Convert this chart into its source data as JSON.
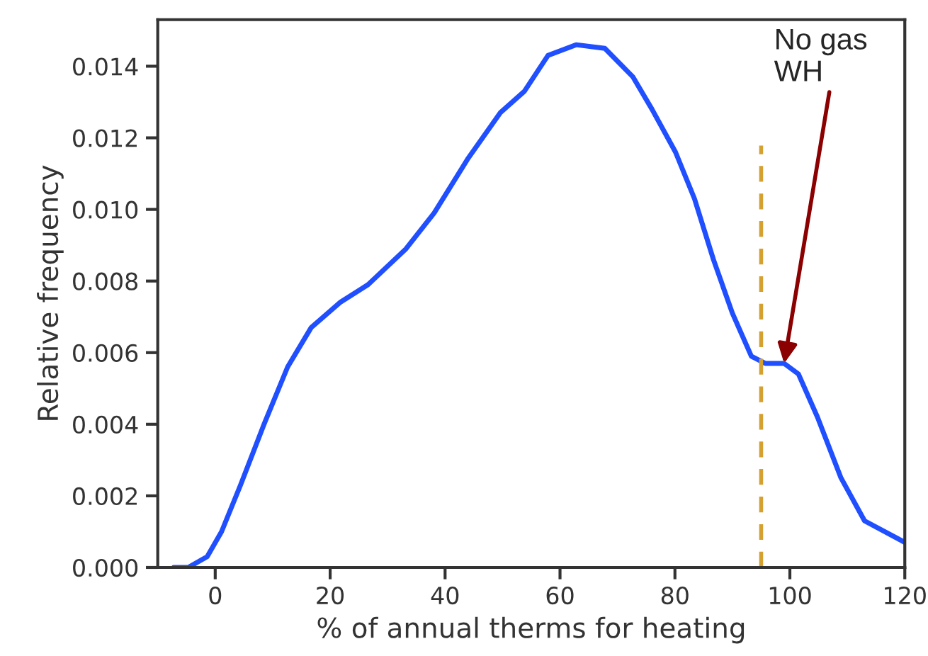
{
  "chart_data": {
    "type": "line",
    "xlabel": "% of annual therms for heating",
    "ylabel": "Relative frequency",
    "x": [
      -7.2,
      -4.7,
      -1.4,
      1.1,
      4.4,
      8.5,
      12.6,
      16.7,
      21.7,
      26.6,
      33.2,
      38.1,
      43.9,
      49.6,
      53.8,
      57.9,
      62.8,
      67.8,
      72.7,
      76.0,
      80.1,
      83.4,
      86.7,
      90.0,
      93.3,
      95.7,
      99.0,
      101.5,
      104.8,
      108.9,
      113.0,
      120
    ],
    "series": [
      {
        "color": "#1f4fff",
        "values": [
          0,
          0,
          0.0003,
          0.001,
          0.0023,
          0.004,
          0.0056,
          0.0067,
          0.0074,
          0.0079,
          0.0089,
          0.0099,
          0.0114,
          0.0127,
          0.0133,
          0.0143,
          0.0146,
          0.0145,
          0.0137,
          0.0128,
          0.0116,
          0.0103,
          0.0086,
          0.0071,
          0.0059,
          0.0057,
          0.0057,
          0.0054,
          0.0042,
          0.0025,
          0.0013,
          0.0007
        ]
      }
    ],
    "xlim": [
      -10,
      120
    ],
    "xticks": [
      0,
      20,
      40,
      60,
      80,
      100,
      120
    ],
    "ylim": [
      0,
      0.0153
    ],
    "yticks": [
      {
        "value": 0,
        "label": "0.000"
      },
      {
        "value": 0.002,
        "label": "0.002"
      },
      {
        "value": 0.004,
        "label": "0.004"
      },
      {
        "value": 0.006,
        "label": "0.006"
      },
      {
        "value": 0.008,
        "label": "0.008"
      },
      {
        "value": 0.01,
        "label": "0.010"
      },
      {
        "value": 0.012,
        "label": "0.012"
      },
      {
        "value": 0.014,
        "label": "0.014"
      }
    ],
    "ref_lines": [
      {
        "axis": "x",
        "value": 95,
        "color": "#d4a030",
        "line_style": "dashed"
      }
    ],
    "annotations": [
      {
        "text": "No gas\nWH",
        "x": 99.0,
        "y": 0.0057
      }
    ],
    "grid": false,
    "legend": false
  }
}
